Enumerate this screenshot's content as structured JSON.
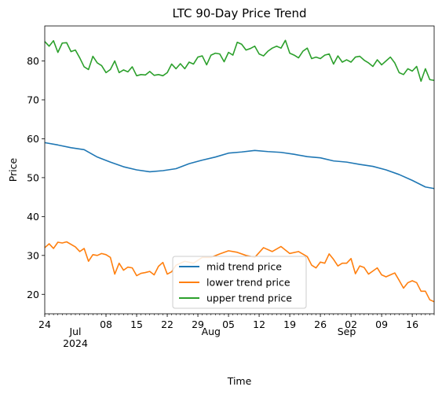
{
  "chart_data": {
    "type": "line",
    "title": "LTC 90-Day Price Trend",
    "xlabel": "Time",
    "ylabel": "Price",
    "x_start": "2024-06-24",
    "x_end": "2024-09-21",
    "ylim": [
      15,
      89
    ],
    "yticks": [
      20,
      30,
      40,
      50,
      60,
      70,
      80
    ],
    "xticks": [
      {
        "date": "2024-06-24",
        "label": "24"
      },
      {
        "date": "2024-07-08",
        "label": "08"
      },
      {
        "date": "2024-07-15",
        "label": "15"
      },
      {
        "date": "2024-07-22",
        "label": "22"
      },
      {
        "date": "2024-07-29",
        "label": "29"
      },
      {
        "date": "2024-08-05",
        "label": "05"
      },
      {
        "date": "2024-08-12",
        "label": "12"
      },
      {
        "date": "2024-08-19",
        "label": "19"
      },
      {
        "date": "2024-08-26",
        "label": "26"
      },
      {
        "date": "2024-09-02",
        "label": "02"
      },
      {
        "date": "2024-09-09",
        "label": "09"
      },
      {
        "date": "2024-09-16",
        "label": "16"
      }
    ],
    "month_labels": [
      {
        "date": "2024-07-01",
        "label": "Jul",
        "sub": "2024"
      },
      {
        "date": "2024-08-01",
        "label": "Aug",
        "sub": ""
      },
      {
        "date": "2024-09-01",
        "label": "Sep",
        "sub": ""
      }
    ],
    "grid": false,
    "legend_position": "lower-center",
    "series": [
      {
        "name": "mid trend price",
        "color": "#1f77b4",
        "points": [
          [
            "2024-06-24",
            59.0
          ],
          [
            "2024-06-27",
            58.4
          ],
          [
            "2024-06-30",
            57.7
          ],
          [
            "2024-07-03",
            57.2
          ],
          [
            "2024-07-06",
            55.3
          ],
          [
            "2024-07-09",
            54.0
          ],
          [
            "2024-07-12",
            52.8
          ],
          [
            "2024-07-15",
            52.0
          ],
          [
            "2024-07-18",
            51.5
          ],
          [
            "2024-07-21",
            51.8
          ],
          [
            "2024-07-24",
            52.3
          ],
          [
            "2024-07-27",
            53.6
          ],
          [
            "2024-07-30",
            54.5
          ],
          [
            "2024-08-02",
            55.3
          ],
          [
            "2024-08-05",
            56.3
          ],
          [
            "2024-08-08",
            56.6
          ],
          [
            "2024-08-11",
            57.0
          ],
          [
            "2024-08-14",
            56.7
          ],
          [
            "2024-08-17",
            56.5
          ],
          [
            "2024-08-20",
            56.0
          ],
          [
            "2024-08-23",
            55.4
          ],
          [
            "2024-08-26",
            55.1
          ],
          [
            "2024-08-29",
            54.3
          ],
          [
            "2024-09-01",
            54.0
          ],
          [
            "2024-09-04",
            53.4
          ],
          [
            "2024-09-07",
            52.9
          ],
          [
            "2024-09-10",
            52.0
          ],
          [
            "2024-09-13",
            50.8
          ],
          [
            "2024-09-16",
            49.3
          ],
          [
            "2024-09-19",
            47.6
          ],
          [
            "2024-09-21",
            47.2
          ]
        ]
      },
      {
        "name": "lower trend price",
        "color": "#ff7f0e",
        "points": [
          [
            "2024-06-24",
            32.0
          ],
          [
            "2024-06-25",
            33.0
          ],
          [
            "2024-06-26",
            31.8
          ],
          [
            "2024-06-27",
            33.4
          ],
          [
            "2024-06-28",
            33.2
          ],
          [
            "2024-06-29",
            33.5
          ],
          [
            "2024-07-01",
            32.2
          ],
          [
            "2024-07-02",
            31.0
          ],
          [
            "2024-07-03",
            31.8
          ],
          [
            "2024-07-04",
            28.5
          ],
          [
            "2024-07-05",
            30.2
          ],
          [
            "2024-07-06",
            30.0
          ],
          [
            "2024-07-07",
            30.5
          ],
          [
            "2024-07-08",
            30.2
          ],
          [
            "2024-07-09",
            29.5
          ],
          [
            "2024-07-10",
            25.2
          ],
          [
            "2024-07-11",
            28.0
          ],
          [
            "2024-07-12",
            26.2
          ],
          [
            "2024-07-13",
            27.0
          ],
          [
            "2024-07-14",
            26.8
          ],
          [
            "2024-07-15",
            24.8
          ],
          [
            "2024-07-16",
            25.4
          ],
          [
            "2024-07-17",
            25.6
          ],
          [
            "2024-07-18",
            25.9
          ],
          [
            "2024-07-19",
            25.0
          ],
          [
            "2024-07-20",
            27.2
          ],
          [
            "2024-07-21",
            28.2
          ],
          [
            "2024-07-22",
            25.2
          ],
          [
            "2024-07-23",
            25.8
          ],
          [
            "2024-07-24",
            27.5
          ],
          [
            "2024-07-26",
            28.5
          ],
          [
            "2024-07-28",
            28.0
          ],
          [
            "2024-07-30",
            29.5
          ],
          [
            "2024-08-01",
            29.5
          ],
          [
            "2024-08-03",
            30.4
          ],
          [
            "2024-08-05",
            31.2
          ],
          [
            "2024-08-07",
            30.8
          ],
          [
            "2024-08-09",
            30.0
          ],
          [
            "2024-08-11",
            29.5
          ],
          [
            "2024-08-13",
            32.0
          ],
          [
            "2024-08-15",
            31.0
          ],
          [
            "2024-08-17",
            32.3
          ],
          [
            "2024-08-19",
            30.5
          ],
          [
            "2024-08-21",
            31.0
          ],
          [
            "2024-08-23",
            29.7
          ],
          [
            "2024-08-24",
            27.5
          ],
          [
            "2024-08-25",
            26.8
          ],
          [
            "2024-08-26",
            28.3
          ],
          [
            "2024-08-27",
            28.0
          ],
          [
            "2024-08-28",
            30.4
          ],
          [
            "2024-08-29",
            29.0
          ],
          [
            "2024-08-30",
            27.3
          ],
          [
            "2024-08-31",
            28.0
          ],
          [
            "2024-09-01",
            28.0
          ],
          [
            "2024-09-02",
            29.2
          ],
          [
            "2024-09-03",
            25.3
          ],
          [
            "2024-09-04",
            27.3
          ],
          [
            "2024-09-05",
            26.9
          ],
          [
            "2024-09-06",
            25.2
          ],
          [
            "2024-09-07",
            26.0
          ],
          [
            "2024-09-08",
            26.8
          ],
          [
            "2024-09-09",
            25.0
          ],
          [
            "2024-09-10",
            24.5
          ],
          [
            "2024-09-11",
            25.0
          ],
          [
            "2024-09-12",
            25.5
          ],
          [
            "2024-09-13",
            23.6
          ],
          [
            "2024-09-14",
            21.6
          ],
          [
            "2024-09-15",
            23.0
          ],
          [
            "2024-09-16",
            23.5
          ],
          [
            "2024-09-17",
            23.0
          ],
          [
            "2024-09-18",
            20.8
          ],
          [
            "2024-09-19",
            20.8
          ],
          [
            "2024-09-20",
            18.6
          ],
          [
            "2024-09-21",
            18.1
          ]
        ]
      },
      {
        "name": "upper trend price",
        "color": "#2ca02c",
        "points": [
          [
            "2024-06-24",
            85.0
          ],
          [
            "2024-06-25",
            83.8
          ],
          [
            "2024-06-26",
            85.2
          ],
          [
            "2024-06-27",
            82.2
          ],
          [
            "2024-06-28",
            84.6
          ],
          [
            "2024-06-29",
            84.7
          ],
          [
            "2024-06-30",
            82.4
          ],
          [
            "2024-07-01",
            82.8
          ],
          [
            "2024-07-02",
            80.8
          ],
          [
            "2024-07-03",
            78.5
          ],
          [
            "2024-07-04",
            77.8
          ],
          [
            "2024-07-05",
            81.2
          ],
          [
            "2024-07-06",
            79.5
          ],
          [
            "2024-07-07",
            78.8
          ],
          [
            "2024-07-08",
            77.0
          ],
          [
            "2024-07-09",
            77.8
          ],
          [
            "2024-07-10",
            80.0
          ],
          [
            "2024-07-11",
            77.0
          ],
          [
            "2024-07-12",
            77.7
          ],
          [
            "2024-07-13",
            77.2
          ],
          [
            "2024-07-14",
            78.5
          ],
          [
            "2024-07-15",
            76.2
          ],
          [
            "2024-07-16",
            76.5
          ],
          [
            "2024-07-17",
            76.4
          ],
          [
            "2024-07-18",
            77.3
          ],
          [
            "2024-07-19",
            76.3
          ],
          [
            "2024-07-20",
            76.5
          ],
          [
            "2024-07-21",
            76.2
          ],
          [
            "2024-07-22",
            77.0
          ],
          [
            "2024-07-23",
            79.2
          ],
          [
            "2024-07-24",
            78.0
          ],
          [
            "2024-07-25",
            79.3
          ],
          [
            "2024-07-26",
            78.0
          ],
          [
            "2024-07-27",
            79.7
          ],
          [
            "2024-07-28",
            79.2
          ],
          [
            "2024-07-29",
            81.0
          ],
          [
            "2024-07-30",
            81.3
          ],
          [
            "2024-07-31",
            79.0
          ],
          [
            "2024-08-01",
            81.5
          ],
          [
            "2024-08-02",
            82.0
          ],
          [
            "2024-08-03",
            81.8
          ],
          [
            "2024-08-04",
            79.8
          ],
          [
            "2024-08-05",
            82.2
          ],
          [
            "2024-08-06",
            81.5
          ],
          [
            "2024-08-07",
            84.8
          ],
          [
            "2024-08-08",
            84.3
          ],
          [
            "2024-08-09",
            82.8
          ],
          [
            "2024-08-10",
            83.2
          ],
          [
            "2024-08-11",
            83.8
          ],
          [
            "2024-08-12",
            81.8
          ],
          [
            "2024-08-13",
            81.3
          ],
          [
            "2024-08-14",
            82.5
          ],
          [
            "2024-08-15",
            83.3
          ],
          [
            "2024-08-16",
            83.8
          ],
          [
            "2024-08-17",
            83.3
          ],
          [
            "2024-08-18",
            85.3
          ],
          [
            "2024-08-19",
            82.0
          ],
          [
            "2024-08-20",
            81.5
          ],
          [
            "2024-08-21",
            80.8
          ],
          [
            "2024-08-22",
            82.5
          ],
          [
            "2024-08-23",
            83.3
          ],
          [
            "2024-08-24",
            80.6
          ],
          [
            "2024-08-25",
            81.0
          ],
          [
            "2024-08-26",
            80.6
          ],
          [
            "2024-08-27",
            81.5
          ],
          [
            "2024-08-28",
            81.8
          ],
          [
            "2024-08-29",
            79.2
          ],
          [
            "2024-08-30",
            81.3
          ],
          [
            "2024-08-31",
            79.7
          ],
          [
            "2024-09-01",
            80.3
          ],
          [
            "2024-09-02",
            79.7
          ],
          [
            "2024-09-03",
            81.0
          ],
          [
            "2024-09-04",
            81.2
          ],
          [
            "2024-09-05",
            80.2
          ],
          [
            "2024-09-06",
            79.5
          ],
          [
            "2024-09-07",
            78.6
          ],
          [
            "2024-09-08",
            80.3
          ],
          [
            "2024-09-09",
            79.0
          ],
          [
            "2024-09-10",
            80.0
          ],
          [
            "2024-09-11",
            81.0
          ],
          [
            "2024-09-12",
            79.5
          ],
          [
            "2024-09-13",
            77.0
          ],
          [
            "2024-09-14",
            76.5
          ],
          [
            "2024-09-15",
            78.0
          ],
          [
            "2024-09-16",
            77.4
          ],
          [
            "2024-09-17",
            78.6
          ],
          [
            "2024-09-18",
            74.8
          ],
          [
            "2024-09-19",
            78.0
          ],
          [
            "2024-09-20",
            75.2
          ],
          [
            "2024-09-21",
            75.0
          ]
        ]
      }
    ]
  }
}
